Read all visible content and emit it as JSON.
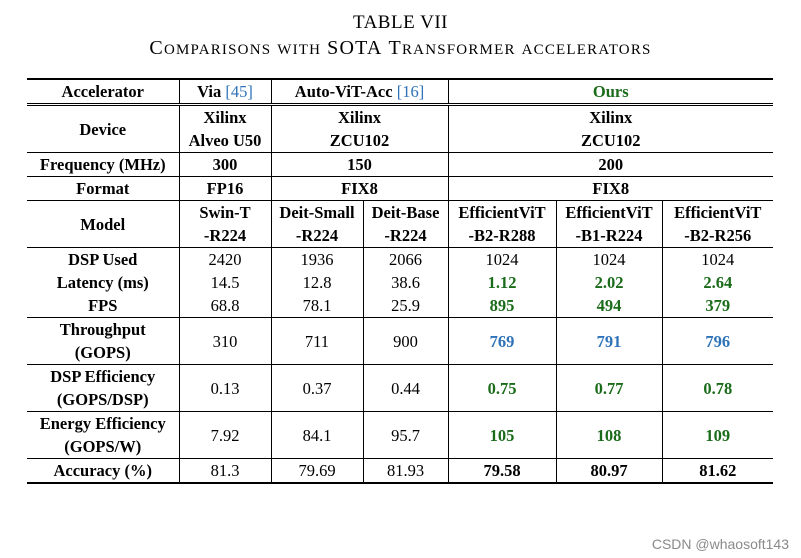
{
  "table_number": "TABLE VII",
  "caption": {
    "w1_first": "C",
    "w1_rest": "OMPARISONS",
    "w2": "WITH",
    "w3": "SOTA",
    "w4_first": "T",
    "w4_rest": "RANSFORMER",
    "w5": "ACCELERATORS"
  },
  "header": {
    "accelerator": "Accelerator",
    "via": "Via",
    "via_ref": "[45]",
    "autovit": "Auto-ViT-Acc",
    "autovit_ref": "[16]",
    "ours": "Ours"
  },
  "device": {
    "label": "Device",
    "via": [
      "Xilinx",
      "Alveo U50"
    ],
    "autovit": [
      "Xilinx",
      "ZCU102"
    ],
    "ours": [
      "Xilinx",
      "ZCU102"
    ]
  },
  "frequency": {
    "label": "Frequency (MHz)",
    "via": "300",
    "autovit": "150",
    "ours": "200"
  },
  "format": {
    "label": "Format",
    "via": "FP16",
    "autovit": "FIX8",
    "ours": "FIX8"
  },
  "model": {
    "label": "Model",
    "cols": [
      [
        "Swin-T",
        "-R224"
      ],
      [
        "Deit-Small",
        "-R224"
      ],
      [
        "Deit-Base",
        "-R224"
      ],
      [
        "EfficientViT",
        "-B2-R288"
      ],
      [
        "EfficientViT",
        "-B1-R224"
      ],
      [
        "EfficientViT",
        "-B2-R256"
      ]
    ]
  },
  "dsp_used": {
    "label": "DSP Used",
    "values": [
      "2420",
      "1936",
      "2066",
      "1024",
      "1024",
      "1024"
    ]
  },
  "latency": {
    "label": "Latency (ms)",
    "values": [
      "14.5",
      "12.8",
      "38.6",
      "1.12",
      "2.02",
      "2.64"
    ]
  },
  "fps": {
    "label": "FPS",
    "values": [
      "68.8",
      "78.1",
      "25.9",
      "895",
      "494",
      "379"
    ]
  },
  "throughput": {
    "label": [
      "Throughput",
      "(GOPS)"
    ],
    "values": [
      "310",
      "711",
      "900",
      "769",
      "791",
      "796"
    ]
  },
  "dsp_eff": {
    "label": [
      "DSP Efficiency",
      "(GOPS/DSP)"
    ],
    "values": [
      "0.13",
      "0.37",
      "0.44",
      "0.75",
      "0.77",
      "0.78"
    ]
  },
  "energy_eff": {
    "label": [
      "Energy Efficiency",
      "(GOPS/W)"
    ],
    "values": [
      "7.92",
      "84.1",
      "95.7",
      "105",
      "108",
      "109"
    ]
  },
  "accuracy": {
    "label": "Accuracy (%)",
    "values": [
      "81.3",
      "79.69",
      "81.93",
      "79.58",
      "80.97",
      "81.62"
    ]
  },
  "colors": {
    "green": "#1a6b1a",
    "blue": "#2e73b8"
  },
  "watermark": "CSDN @whaosoft143"
}
